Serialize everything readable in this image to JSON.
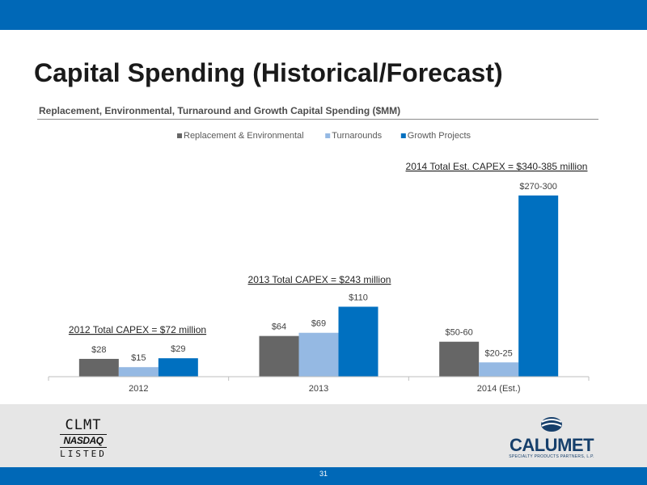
{
  "slide": {
    "title": "Capital Spending (Historical/Forecast)",
    "subtitle": "Replacement, Environmental, Turnaround and Growth Capital Spending ($MM)",
    "page_number": "31"
  },
  "logos": {
    "clmt_ticker": "CLMT",
    "clmt_exchange": "NASDAQ",
    "clmt_listed": "LISTED",
    "calumet_name": "CALUMET",
    "calumet_tagline": "SPECIALTY PRODUCTS PARTNERS, L.P."
  },
  "colors": {
    "brand_blue": "#0068b7",
    "replacement": "#666666",
    "turnarounds": "#95b9e3",
    "growth": "#0070c0"
  },
  "chart_data": {
    "type": "bar",
    "categories": [
      "2012",
      "2013",
      "2014 (Est.)"
    ],
    "series": [
      {
        "name": "Replacement & Environmental",
        "values": [
          28,
          64,
          55
        ],
        "labels": [
          "$28",
          "$64",
          "$50-60"
        ],
        "color": "#666666"
      },
      {
        "name": "Turnarounds",
        "values": [
          15,
          69,
          22.5
        ],
        "labels": [
          "$15",
          "$69",
          "$20-25"
        ],
        "color": "#95b9e3"
      },
      {
        "name": "Growth Projects",
        "values": [
          29,
          110,
          285
        ],
        "labels": [
          "$29",
          "$110",
          "$270-300"
        ],
        "color": "#0070c0"
      }
    ],
    "annotations": [
      "2012 Total CAPEX = $72 million",
      "2013 Total CAPEX = $243 million",
      "2014 Total Est. CAPEX = $340-385 million"
    ],
    "legend_position": "top",
    "grid": false
  }
}
